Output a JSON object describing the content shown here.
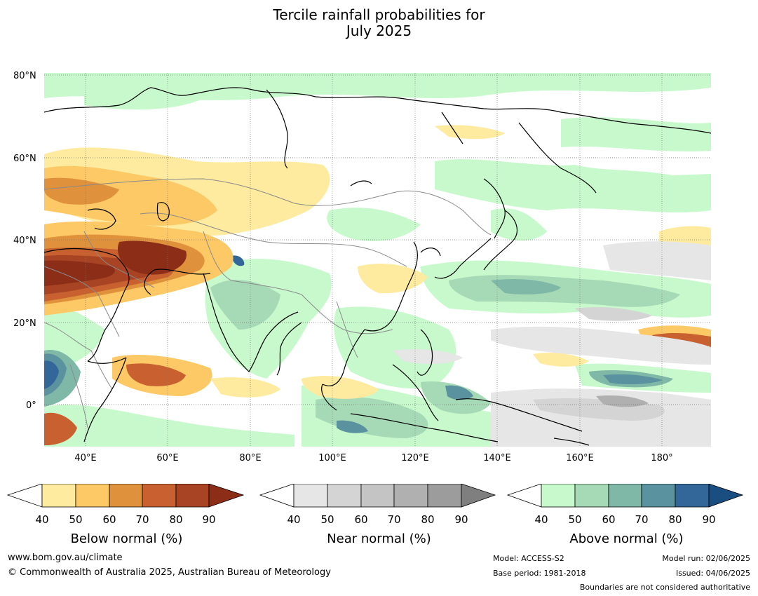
{
  "title_line1": "Tercile rainfall probabilities for",
  "title_line2": "July 2025",
  "map": {
    "lat_labels": [
      "80°N",
      "60°N",
      "40°N",
      "20°N",
      "0°"
    ],
    "lon_labels": [
      "40°E",
      "60°E",
      "80°E",
      "100°E",
      "120°E",
      "140°E",
      "160°E",
      "180°"
    ]
  },
  "legends": [
    {
      "title": "Below normal (%)",
      "ticks": [
        "40",
        "50",
        "60",
        "70",
        "80",
        "90"
      ],
      "colors": [
        "#ffffff",
        "#feeb9f",
        "#fdc966",
        "#e0913c",
        "#c86030",
        "#a84424",
        "#8c2d18"
      ]
    },
    {
      "title": "Near normal (%)",
      "ticks": [
        "40",
        "50",
        "60",
        "70",
        "80",
        "90"
      ],
      "colors": [
        "#ffffff",
        "#e6e6e6",
        "#d4d4d4",
        "#c4c4c4",
        "#b0b0b0",
        "#9c9c9c",
        "#7f7f7f"
      ]
    },
    {
      "title": "Above normal (%)",
      "ticks": [
        "40",
        "50",
        "60",
        "70",
        "80",
        "90"
      ],
      "colors": [
        "#ffffff",
        "#c7f9cc",
        "#a6d9b5",
        "#80b8a8",
        "#5b929f",
        "#336699",
        "#1a4d80"
      ]
    }
  ],
  "footer": {
    "website": "www.bom.gov.au/climate",
    "copyright": "© Commonwealth of Australia 2025, Australian Bureau of Meteorology",
    "model": "Model: ACCESS-S2",
    "base_period": "Base period: 1981-2018",
    "model_run": "Model run: 02/06/2025",
    "issued": "Issued: 04/06/2025",
    "boundaries": "Boundaries are not considered authoritative"
  }
}
